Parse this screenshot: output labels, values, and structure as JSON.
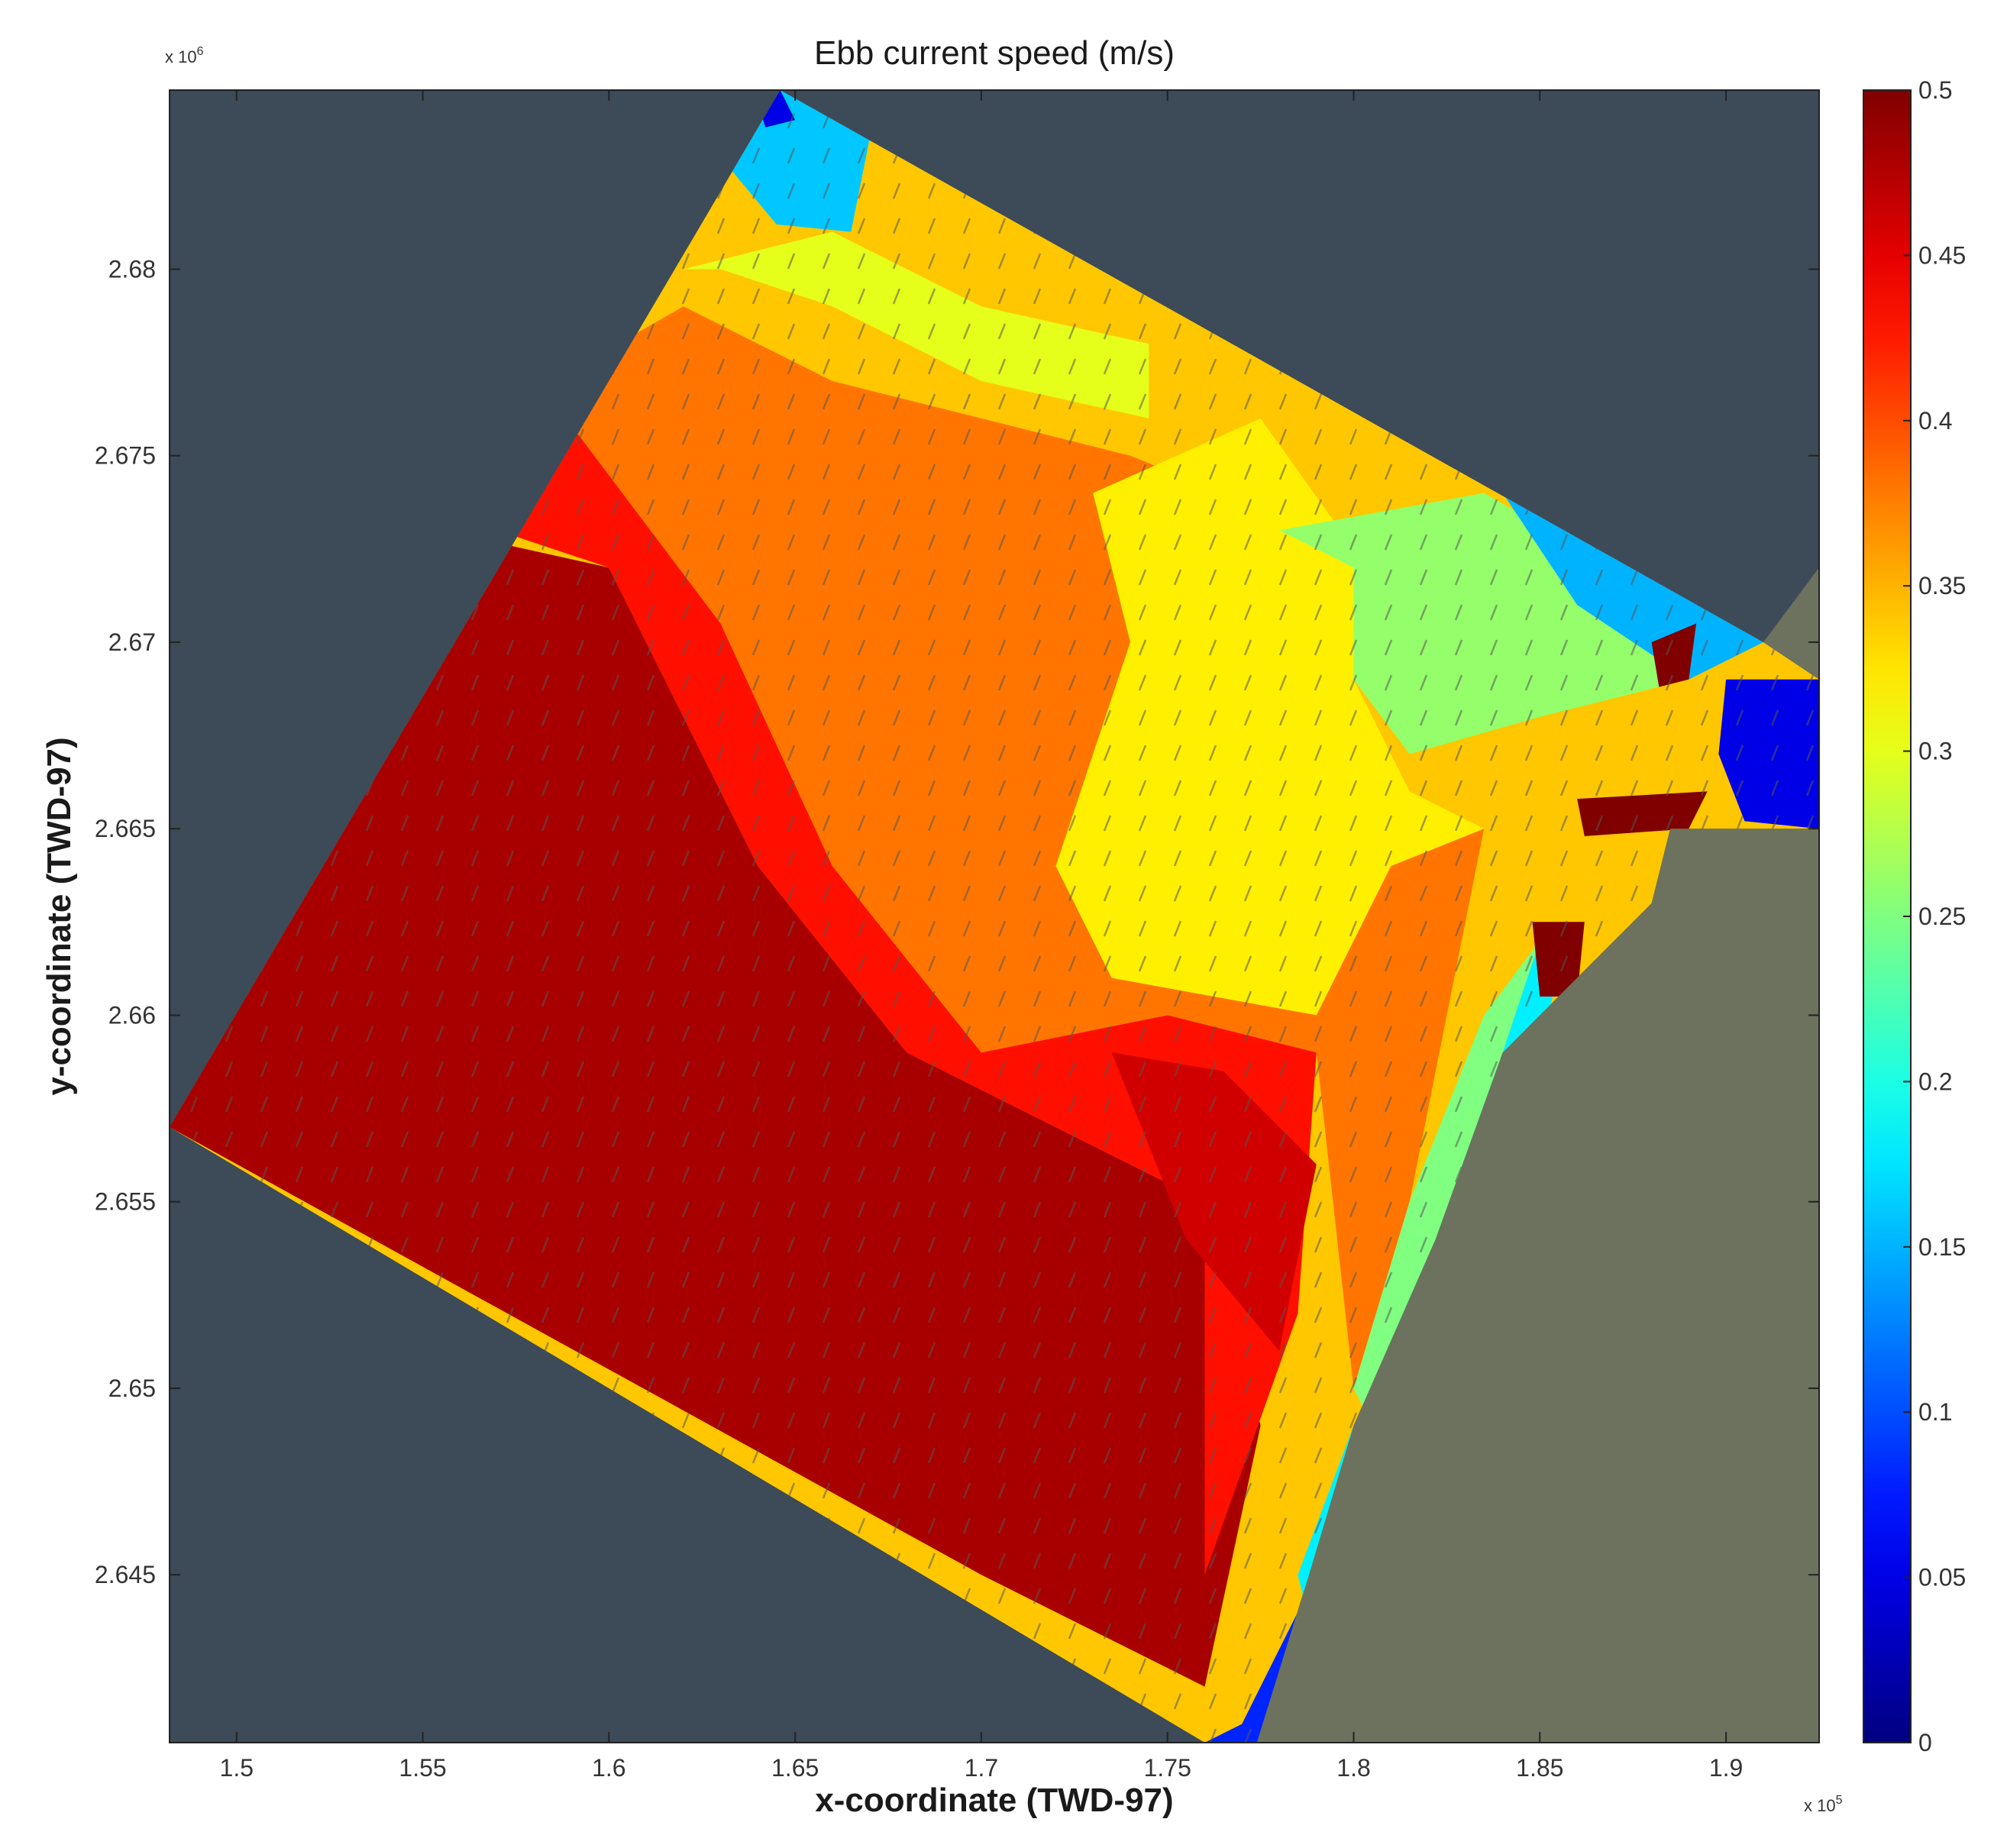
{
  "chart_data": {
    "type": "heatmap",
    "title": "Ebb current speed (m/s)",
    "xlabel": "x-coordinate (TWD-97)",
    "ylabel": "y-coordinate (TWD-97)",
    "x_multiplier_label": "x 10",
    "x_multiplier_exp": "5",
    "y_multiplier_label": "x 10",
    "y_multiplier_exp": "6",
    "xlim": [
      1.482,
      1.925
    ],
    "ylim": [
      2.6405,
      2.6848
    ],
    "x_ticks": [
      {
        "value": 1.5,
        "label": "1.5"
      },
      {
        "value": 1.55,
        "label": "1.55"
      },
      {
        "value": 1.6,
        "label": "1.6"
      },
      {
        "value": 1.65,
        "label": "1.65"
      },
      {
        "value": 1.7,
        "label": "1.7"
      },
      {
        "value": 1.75,
        "label": "1.75"
      },
      {
        "value": 1.8,
        "label": "1.8"
      },
      {
        "value": 1.85,
        "label": "1.85"
      },
      {
        "value": 1.9,
        "label": "1.9"
      }
    ],
    "y_ticks": [
      {
        "value": 2.645,
        "label": "2.645"
      },
      {
        "value": 2.65,
        "label": "2.65"
      },
      {
        "value": 2.655,
        "label": "2.655"
      },
      {
        "value": 2.66,
        "label": "2.66"
      },
      {
        "value": 2.665,
        "label": "2.665"
      },
      {
        "value": 2.67,
        "label": "2.67"
      },
      {
        "value": 2.675,
        "label": "2.675"
      },
      {
        "value": 2.68,
        "label": "2.68"
      }
    ],
    "colorbar": {
      "colormap": "jet",
      "min": 0,
      "max": 0.5,
      "ticks": [
        {
          "value": 0,
          "label": "0"
        },
        {
          "value": 0.05,
          "label": "0.05"
        },
        {
          "value": 0.1,
          "label": "0.1"
        },
        {
          "value": 0.15,
          "label": "0.15"
        },
        {
          "value": 0.2,
          "label": "0.2"
        },
        {
          "value": 0.25,
          "label": "0.25"
        },
        {
          "value": 0.3,
          "label": "0.3"
        },
        {
          "value": 0.35,
          "label": "0.35"
        },
        {
          "value": 0.4,
          "label": "0.4"
        },
        {
          "value": 0.45,
          "label": "0.45"
        },
        {
          "value": 0.5,
          "label": "0.5"
        }
      ]
    },
    "domain_polygon": [
      [
        1.646,
        2.6848
      ],
      [
        1.91,
        2.67
      ],
      [
        1.925,
        2.669
      ],
      [
        1.925,
        2.665
      ],
      [
        1.885,
        2.665
      ],
      [
        1.88,
        2.663
      ],
      [
        1.87,
        2.662
      ],
      [
        1.84,
        2.659
      ],
      [
        1.822,
        2.654
      ],
      [
        1.8,
        2.649
      ],
      [
        1.788,
        2.645
      ],
      [
        1.774,
        2.6405
      ],
      [
        1.76,
        2.6405
      ],
      [
        1.482,
        2.657
      ]
    ],
    "speed_zones": [
      {
        "speed": 0.48,
        "polygon": [
          [
            1.482,
            2.657
          ],
          [
            1.555,
            2.673
          ],
          [
            1.6,
            2.672
          ],
          [
            1.64,
            2.664
          ],
          [
            1.68,
            2.659
          ],
          [
            1.76,
            2.655
          ],
          [
            1.775,
            2.649
          ],
          [
            1.76,
            2.642
          ],
          [
            1.7,
            2.645
          ]
        ]
      },
      {
        "speed": 0.43,
        "polygon": [
          [
            1.555,
            2.6735
          ],
          [
            1.59,
            2.6758
          ],
          [
            1.63,
            2.6705
          ],
          [
            1.66,
            2.664
          ],
          [
            1.7,
            2.659
          ],
          [
            1.75,
            2.66
          ],
          [
            1.79,
            2.659
          ],
          [
            1.785,
            2.652
          ],
          [
            1.76,
            2.645
          ],
          [
            1.76,
            2.655
          ],
          [
            1.68,
            2.659
          ],
          [
            1.64,
            2.664
          ],
          [
            1.6,
            2.672
          ]
        ]
      },
      {
        "speed": 0.46,
        "polygon": [
          [
            1.735,
            2.659
          ],
          [
            1.765,
            2.6585
          ],
          [
            1.79,
            2.656
          ],
          [
            1.78,
            2.651
          ],
          [
            1.755,
            2.654
          ]
        ]
      },
      {
        "speed": 0.38,
        "polygon": [
          [
            1.585,
            2.677
          ],
          [
            1.62,
            2.679
          ],
          [
            1.66,
            2.677
          ],
          [
            1.7,
            2.676
          ],
          [
            1.74,
            2.675
          ],
          [
            1.79,
            2.673
          ],
          [
            1.74,
            2.67
          ],
          [
            1.72,
            2.664
          ],
          [
            1.735,
            2.661
          ],
          [
            1.79,
            2.66
          ],
          [
            1.81,
            2.664
          ],
          [
            1.835,
            2.665
          ],
          [
            1.815,
            2.655
          ],
          [
            1.8,
            2.65
          ],
          [
            1.79,
            2.659
          ],
          [
            1.75,
            2.66
          ],
          [
            1.7,
            2.659
          ],
          [
            1.66,
            2.664
          ],
          [
            1.63,
            2.6705
          ],
          [
            1.59,
            2.6758
          ]
        ]
      },
      {
        "speed": 0.32,
        "polygon": [
          [
            1.73,
            2.674
          ],
          [
            1.775,
            2.676
          ],
          [
            1.8,
            2.6725
          ],
          [
            1.8,
            2.669
          ],
          [
            1.815,
            2.666
          ],
          [
            1.835,
            2.665
          ],
          [
            1.81,
            2.664
          ],
          [
            1.79,
            2.66
          ],
          [
            1.735,
            2.661
          ],
          [
            1.72,
            2.664
          ],
          [
            1.74,
            2.67
          ]
        ]
      },
      {
        "speed": 0.3,
        "polygon": [
          [
            1.66,
            2.681
          ],
          [
            1.7,
            2.679
          ],
          [
            1.745,
            2.678
          ],
          [
            1.745,
            2.676
          ],
          [
            1.7,
            2.677
          ],
          [
            1.66,
            2.679
          ],
          [
            1.63,
            2.68
          ],
          [
            1.62,
            2.68
          ]
        ]
      },
      {
        "speed": 0.26,
        "polygon": [
          [
            1.78,
            2.673
          ],
          [
            1.835,
            2.674
          ],
          [
            1.87,
            2.672
          ],
          [
            1.89,
            2.669
          ],
          [
            1.85,
            2.668
          ],
          [
            1.815,
            2.667
          ],
          [
            1.8,
            2.669
          ],
          [
            1.8,
            2.672
          ]
        ]
      },
      {
        "speed": 0.15,
        "polygon": [
          [
            1.84,
            2.674
          ],
          [
            1.89,
            2.6715
          ],
          [
            1.91,
            2.67
          ],
          [
            1.89,
            2.669
          ],
          [
            1.86,
            2.671
          ]
        ]
      },
      {
        "speed": 0.16,
        "polygon": [
          [
            1.635,
            2.684
          ],
          [
            1.646,
            2.6848
          ],
          [
            1.67,
            2.6835
          ],
          [
            1.665,
            2.681
          ],
          [
            1.645,
            2.6812
          ],
          [
            1.63,
            2.683
          ]
        ]
      },
      {
        "speed": 0.05,
        "polygon": [
          [
            1.64,
            2.6845
          ],
          [
            1.646,
            2.6848
          ],
          [
            1.65,
            2.684
          ],
          [
            1.642,
            2.6838
          ]
        ]
      },
      {
        "speed": 0.25,
        "polygon": [
          [
            1.8,
            2.65
          ],
          [
            1.815,
            2.655
          ],
          [
            1.835,
            2.66
          ],
          [
            1.85,
            2.662
          ],
          [
            1.845,
            2.659
          ],
          [
            1.822,
            2.654
          ],
          [
            1.805,
            2.649
          ]
        ]
      },
      {
        "speed": 0.18,
        "polygon": [
          [
            1.785,
            2.645
          ],
          [
            1.8,
            2.649
          ],
          [
            1.822,
            2.654
          ],
          [
            1.84,
            2.659
          ],
          [
            1.85,
            2.662
          ],
          [
            1.855,
            2.661
          ],
          [
            1.84,
            2.656
          ],
          [
            1.825,
            2.652
          ],
          [
            1.805,
            2.647
          ],
          [
            1.79,
            2.643
          ]
        ]
      },
      {
        "speed": 0.08,
        "polygon": [
          [
            1.76,
            2.6405
          ],
          [
            1.774,
            2.6405
          ],
          [
            1.788,
            2.6445
          ],
          [
            1.795,
            2.646
          ],
          [
            1.785,
            2.644
          ],
          [
            1.77,
            2.641
          ]
        ]
      },
      {
        "speed": 0.05,
        "polygon": [
          [
            1.9,
            2.669
          ],
          [
            1.925,
            2.669
          ],
          [
            1.925,
            2.665
          ],
          [
            1.905,
            2.6652
          ],
          [
            1.898,
            2.667
          ]
        ]
      },
      {
        "speed": 0.5,
        "polygon": [
          [
            1.86,
            2.6658
          ],
          [
            1.895,
            2.666
          ],
          [
            1.89,
            2.665
          ],
          [
            1.862,
            2.6648
          ]
        ]
      },
      {
        "speed": 0.5,
        "polygon": [
          [
            1.88,
            2.67
          ],
          [
            1.892,
            2.6705
          ],
          [
            1.89,
            2.669
          ],
          [
            1.882,
            2.6688
          ]
        ]
      },
      {
        "speed": 0.5,
        "polygon": [
          [
            1.848,
            2.6625
          ],
          [
            1.862,
            2.6625
          ],
          [
            1.86,
            2.6605
          ],
          [
            1.85,
            2.6605
          ]
        ]
      }
    ]
  }
}
